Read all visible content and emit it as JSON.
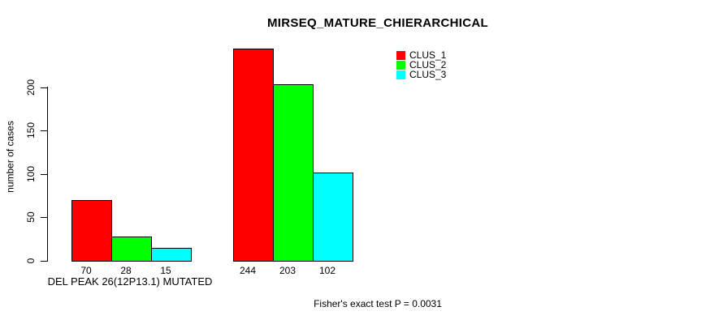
{
  "chart_data": {
    "type": "bar",
    "title": "MIRSEQ_MATURE_CHIERARCHICAL",
    "ylabel": "number of cases",
    "xlabel": "",
    "yticks": [
      0,
      50,
      100,
      150,
      200
    ],
    "ylim": [
      0,
      245
    ],
    "grid": false,
    "legend_position": "top-right",
    "categories": [
      "DEL PEAK 26(12P13.1) MUTATED",
      ""
    ],
    "groups": [
      {
        "label": "DEL PEAK 26(12P13.1) MUTATED",
        "values": [
          70,
          28,
          15
        ]
      },
      {
        "label": "",
        "values": [
          244,
          203,
          102
        ]
      }
    ],
    "series": [
      {
        "name": "CLUS_1",
        "color": "#ff0000"
      },
      {
        "name": "CLUS_2",
        "color": "#00ff00"
      },
      {
        "name": "CLUS_3",
        "color": "#00ffff"
      }
    ],
    "bar_border_color": "#000000",
    "annotation": "Fisher's exact test P = 0.0031"
  }
}
